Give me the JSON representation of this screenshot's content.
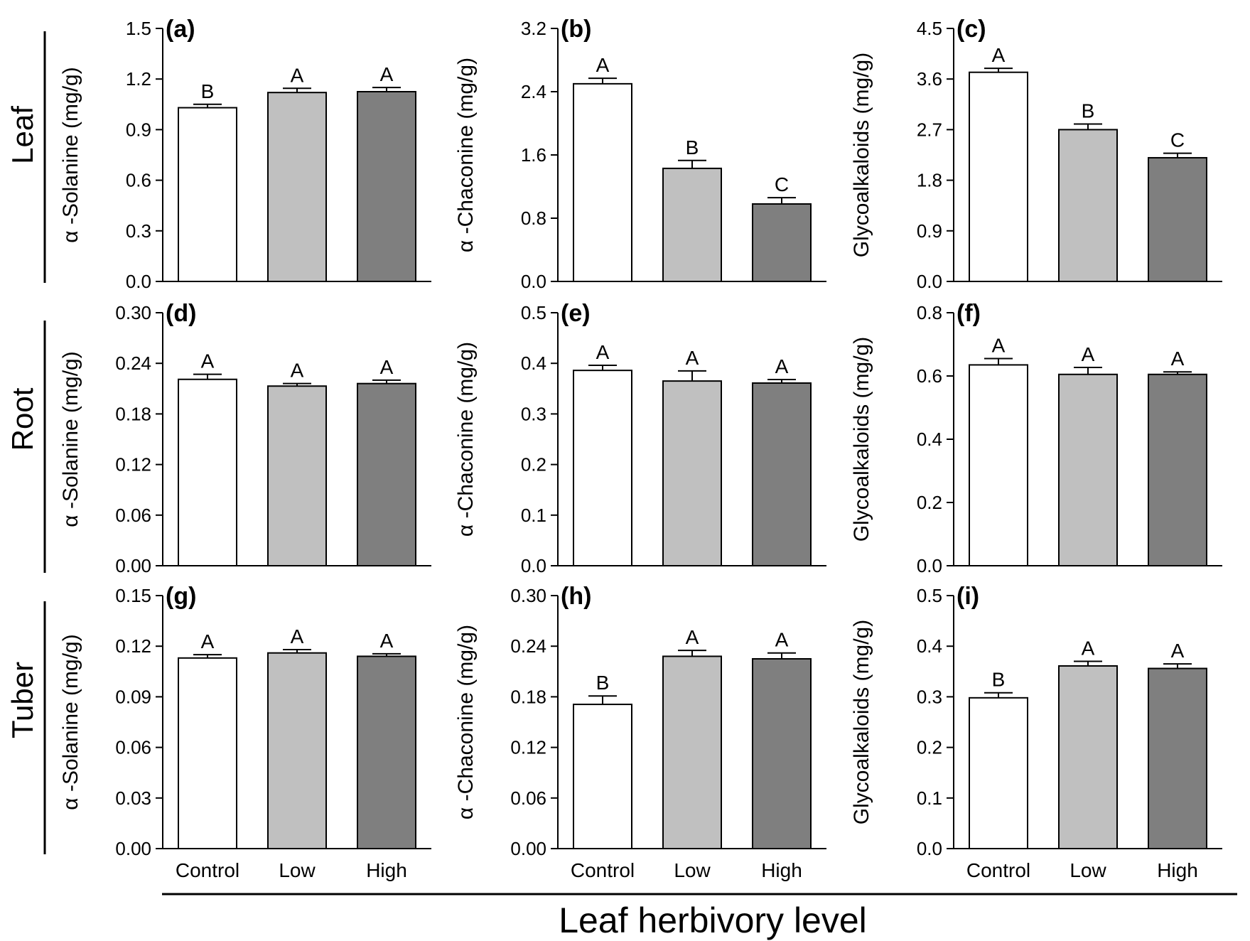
{
  "figure": {
    "xlabel": "Leaf herbivory level",
    "row_labels": [
      "Leaf",
      "Root",
      "Tuber"
    ]
  },
  "colors": {
    "Control": "#ffffff",
    "Low": "#c0c0c0",
    "High": "#7f7f7f",
    "outline": "#000000"
  },
  "chart_data": [
    {
      "panel": "(a)",
      "type": "bar",
      "row": "Leaf",
      "ylabel": "α -Solanine (mg/g)",
      "ylim": [
        0,
        1.5
      ],
      "yticks": [
        "0.0",
        "0.3",
        "0.6",
        "0.9",
        "1.2",
        "1.5"
      ],
      "categories": [
        "Control",
        "Low",
        "High"
      ],
      "values": [
        1.03,
        1.12,
        1.125
      ],
      "errors": [
        0.02,
        0.025,
        0.025
      ],
      "significance": [
        "B",
        "A",
        "A"
      ]
    },
    {
      "panel": "(b)",
      "type": "bar",
      "row": "Leaf",
      "ylabel": "α -Chaconine (mg/g)",
      "ylim": [
        0,
        3.2
      ],
      "yticks": [
        "0.0",
        "0.8",
        "1.6",
        "2.4",
        "3.2"
      ],
      "categories": [
        "Control",
        "Low",
        "High"
      ],
      "values": [
        2.5,
        1.43,
        0.98
      ],
      "errors": [
        0.07,
        0.1,
        0.08
      ],
      "significance": [
        "A",
        "B",
        "C"
      ]
    },
    {
      "panel": "(c)",
      "type": "bar",
      "row": "Leaf",
      "ylabel": "Glycoalkaloids (mg/g)",
      "ylim": [
        0,
        4.5
      ],
      "yticks": [
        "0.0",
        "0.9",
        "1.8",
        "2.7",
        "3.6",
        "4.5"
      ],
      "categories": [
        "Control",
        "Low",
        "High"
      ],
      "values": [
        3.72,
        2.7,
        2.2
      ],
      "errors": [
        0.07,
        0.1,
        0.08
      ],
      "significance": [
        "A",
        "B",
        "C"
      ]
    },
    {
      "panel": "(d)",
      "type": "bar",
      "row": "Root",
      "ylabel": "α -Solanine (mg/g)",
      "ylim": [
        0,
        0.3
      ],
      "yticks": [
        "0.00",
        "0.06",
        "0.12",
        "0.18",
        "0.24",
        "0.30"
      ],
      "categories": [
        "Control",
        "Low",
        "High"
      ],
      "values": [
        0.221,
        0.213,
        0.216
      ],
      "errors": [
        0.006,
        0.003,
        0.004
      ],
      "significance": [
        "A",
        "A",
        "A"
      ]
    },
    {
      "panel": "(e)",
      "type": "bar",
      "row": "Root",
      "ylabel": "α -Chaconine (mg/g)",
      "ylim": [
        0,
        0.5
      ],
      "yticks": [
        "0.0",
        "0.1",
        "0.2",
        "0.3",
        "0.4",
        "0.5"
      ],
      "categories": [
        "Control",
        "Low",
        "High"
      ],
      "values": [
        0.386,
        0.365,
        0.361
      ],
      "errors": [
        0.01,
        0.02,
        0.007
      ],
      "significance": [
        "A",
        "A",
        "A"
      ]
    },
    {
      "panel": "(f)",
      "type": "bar",
      "row": "Root",
      "ylabel": "Glycoalkaloids (mg/g)",
      "ylim": [
        0,
        0.8
      ],
      "yticks": [
        "0.0",
        "0.2",
        "0.4",
        "0.6",
        "0.8"
      ],
      "categories": [
        "Control",
        "Low",
        "High"
      ],
      "values": [
        0.635,
        0.605,
        0.605
      ],
      "errors": [
        0.02,
        0.022,
        0.008
      ],
      "significance": [
        "A",
        "A",
        "A"
      ]
    },
    {
      "panel": "(g)",
      "type": "bar",
      "row": "Tuber",
      "ylabel": "α -Solanine (mg/g)",
      "ylim": [
        0,
        0.15
      ],
      "yticks": [
        "0.00",
        "0.03",
        "0.06",
        "0.09",
        "0.12",
        "0.15"
      ],
      "categories": [
        "Control",
        "Low",
        "High"
      ],
      "values": [
        0.113,
        0.116,
        0.114
      ],
      "errors": [
        0.002,
        0.002,
        0.0015
      ],
      "significance": [
        "A",
        "A",
        "A"
      ]
    },
    {
      "panel": "(h)",
      "type": "bar",
      "row": "Tuber",
      "ylabel": "α -Chaconine (mg/g)",
      "ylim": [
        0,
        0.3
      ],
      "yticks": [
        "0.00",
        "0.06",
        "0.12",
        "0.18",
        "0.24",
        "0.30"
      ],
      "categories": [
        "Control",
        "Low",
        "High"
      ],
      "values": [
        0.171,
        0.228,
        0.225
      ],
      "errors": [
        0.01,
        0.007,
        0.007
      ],
      "significance": [
        "B",
        "A",
        "A"
      ]
    },
    {
      "panel": "(i)",
      "type": "bar",
      "row": "Tuber",
      "ylabel": "Glycoalkaloids (mg/g)",
      "ylim": [
        0,
        0.5
      ],
      "yticks": [
        "0.0",
        "0.1",
        "0.2",
        "0.3",
        "0.4",
        "0.5"
      ],
      "categories": [
        "Control",
        "Low",
        "High"
      ],
      "values": [
        0.298,
        0.361,
        0.356
      ],
      "errors": [
        0.01,
        0.009,
        0.009
      ],
      "significance": [
        "B",
        "A",
        "A"
      ]
    }
  ]
}
